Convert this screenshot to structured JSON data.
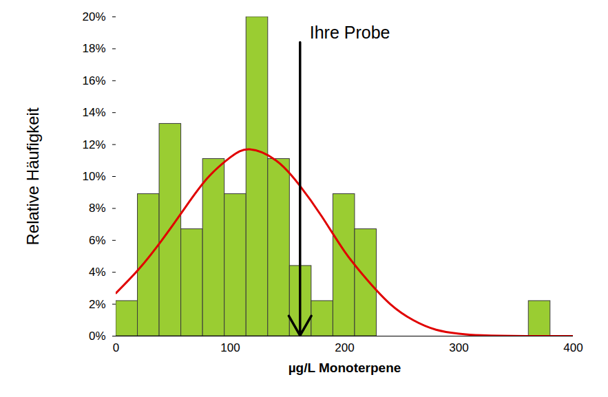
{
  "chart_data": {
    "type": "histogram",
    "xlabel": "µg/L Monoterpene",
    "ylabel": "Relative Häufigkeit",
    "bins": [
      0,
      19,
      38,
      57,
      76,
      95,
      114,
      133,
      152,
      171,
      190,
      209,
      228,
      247,
      266,
      285,
      304,
      323,
      342,
      361,
      380
    ],
    "values": [
      2.2,
      8.9,
      13.3,
      6.7,
      11.1,
      8.9,
      20.0,
      11.1,
      4.4,
      2.2,
      8.9,
      6.7,
      0,
      0,
      0,
      0,
      0,
      0,
      0,
      2.2
    ],
    "color": "#9acd32",
    "series": [
      {
        "type": "line",
        "color": "#e00000",
        "x": [
          0,
          20,
          40,
          60,
          80,
          100,
          117,
          140,
          160,
          180,
          200,
          220,
          240,
          260,
          280,
          300,
          320,
          360,
          400
        ],
        "values": [
          2.7,
          4.2,
          6.0,
          8.0,
          9.9,
          11.2,
          11.7,
          11.0,
          9.5,
          7.5,
          5.3,
          3.5,
          2.0,
          1.0,
          0.4,
          0.15,
          0.05,
          0.0,
          0.0
        ]
      }
    ],
    "annotations": [
      {
        "text": "Ihre Probe",
        "x": 161,
        "y": 18.4
      }
    ],
    "xlim": [
      0,
      400
    ],
    "xticks": [
      0,
      100,
      200,
      300,
      400
    ],
    "ylim": [
      0,
      20
    ],
    "yticks": [
      {
        "value": 0,
        "label": "0%"
      },
      {
        "value": 2,
        "label": "2%"
      },
      {
        "value": 4,
        "label": "4%"
      },
      {
        "value": 6,
        "label": "6%"
      },
      {
        "value": 8,
        "label": "8%"
      },
      {
        "value": 10,
        "label": "10%"
      },
      {
        "value": 12,
        "label": "12%"
      },
      {
        "value": 14,
        "label": "14%"
      },
      {
        "value": 16,
        "label": "16%"
      },
      {
        "value": 18,
        "label": "18%"
      },
      {
        "value": 20,
        "label": "20%"
      }
    ]
  }
}
